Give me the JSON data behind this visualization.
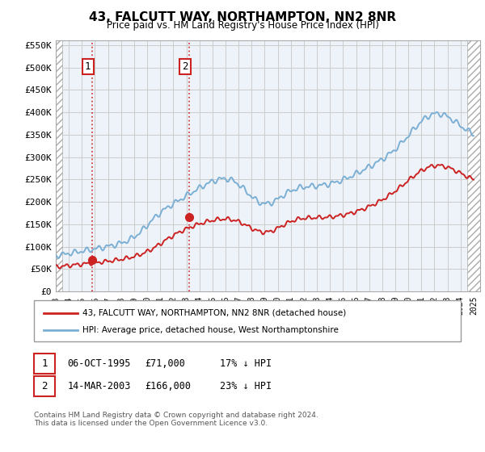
{
  "title": "43, FALCUTT WAY, NORTHAMPTON, NN2 8NR",
  "subtitle": "Price paid vs. HM Land Registry's House Price Index (HPI)",
  "legend_line1": "43, FALCUTT WAY, NORTHAMPTON, NN2 8NR (detached house)",
  "legend_line2": "HPI: Average price, detached house, West Northamptonshire",
  "footer": "Contains HM Land Registry data © Crown copyright and database right 2024.\nThis data is licensed under the Open Government Licence v3.0.",
  "ylim": [
    0,
    560000
  ],
  "yticks": [
    0,
    50000,
    100000,
    150000,
    200000,
    250000,
    300000,
    350000,
    400000,
    450000,
    500000,
    550000
  ],
  "ytick_labels": [
    "£0",
    "£50K",
    "£100K",
    "£150K",
    "£200K",
    "£250K",
    "£300K",
    "£350K",
    "£400K",
    "£450K",
    "£500K",
    "£550K"
  ],
  "hpi_color": "#7BAFD4",
  "price_color": "#CC2222",
  "marker1_x": 1995.76,
  "marker1_y": 71000,
  "marker2_x": 2003.21,
  "marker2_y": 166000,
  "grid_color": "#cccccc",
  "plot_bg": "#EEF3FA",
  "hatch_color": "#DDDDDD",
  "xlim": [
    1993.0,
    2025.5
  ],
  "xtick_start": 1993,
  "xtick_end": 2025,
  "xtick_step": 1
}
